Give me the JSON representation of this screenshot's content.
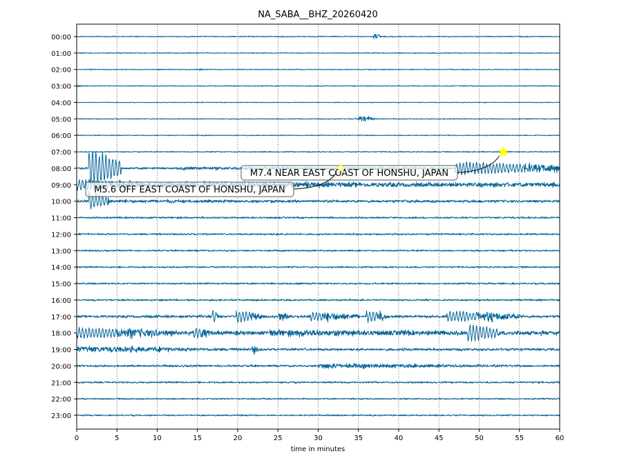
{
  "chart_data": {
    "type": "line",
    "title": "NA_SABA__BHZ_20260420",
    "xlabel": "time in minutes",
    "ylabel": "",
    "xlim": [
      0,
      60
    ],
    "x_ticks": [
      0,
      5,
      10,
      15,
      20,
      25,
      30,
      35,
      40,
      45,
      50,
      55,
      60
    ],
    "grid": "vertical dotted",
    "trace_color": "#00639a",
    "row_labels": [
      "00:00",
      "01:00",
      "02:00",
      "03:00",
      "04:00",
      "05:00",
      "06:00",
      "07:00",
      "08:00",
      "09:00",
      "10:00",
      "11:00",
      "12:00",
      "13:00",
      "14:00",
      "15:00",
      "16:00",
      "17:00",
      "18:00",
      "19:00",
      "20:00",
      "21:00",
      "22:00",
      "23:00"
    ],
    "background_amplitude": [
      0.6,
      0.5,
      0.5,
      0.5,
      0.4,
      0.5,
      0.5,
      0.6,
      1.2,
      2.5,
      1.5,
      1,
      1,
      0.9,
      0.9,
      1,
      1,
      1.5,
      2.5,
      1.5,
      1.2,
      1,
      0.8,
      0.8
    ],
    "bursts": [
      {
        "row": 0,
        "start": 36.8,
        "end": 37.8,
        "amp": 4
      },
      {
        "row": 2,
        "start": 15.2,
        "end": 15.6,
        "amp": 3
      },
      {
        "row": 3,
        "start": 0.1,
        "end": 0.5,
        "amp": 2
      },
      {
        "row": 5,
        "start": 35,
        "end": 37,
        "amp": 4
      },
      {
        "row": 8,
        "start": 13,
        "end": 47,
        "amp": 2
      },
      {
        "row": 8,
        "start": 47,
        "end": 60,
        "amp": 10
      },
      {
        "row": 8,
        "start": 1.5,
        "end": 5.5,
        "amp": 28
      },
      {
        "row": 9,
        "start": 0,
        "end": 10,
        "amp": 8
      },
      {
        "row": 9,
        "start": 10,
        "end": 60,
        "amp": 4
      },
      {
        "row": 10,
        "start": 1.5,
        "end": 4,
        "amp": 14
      },
      {
        "row": 10,
        "start": 4,
        "end": 60,
        "amp": 2
      },
      {
        "row": 17,
        "start": 16.8,
        "end": 17.6,
        "amp": 10
      },
      {
        "row": 17,
        "start": 19.8,
        "end": 23,
        "amp": 9
      },
      {
        "row": 17,
        "start": 25,
        "end": 27,
        "amp": 5
      },
      {
        "row": 17,
        "start": 29,
        "end": 35,
        "amp": 7
      },
      {
        "row": 17,
        "start": 36,
        "end": 38.5,
        "amp": 9
      },
      {
        "row": 17,
        "start": 46,
        "end": 55,
        "amp": 8
      },
      {
        "row": 18,
        "start": 0,
        "end": 12,
        "amp": 8
      },
      {
        "row": 18,
        "start": 14.5,
        "end": 16.5,
        "amp": 9
      },
      {
        "row": 18,
        "start": 24,
        "end": 60,
        "amp": 4
      },
      {
        "row": 18,
        "start": 48.5,
        "end": 52.5,
        "amp": 14
      },
      {
        "row": 19,
        "start": 0,
        "end": 18,
        "amp": 4
      },
      {
        "row": 19,
        "start": 21.8,
        "end": 22.6,
        "amp": 6
      },
      {
        "row": 20,
        "start": 30,
        "end": 55,
        "amp": 3
      }
    ],
    "events": [
      {
        "label": "M7.4 NEAR EAST COAST OF HONSHU, JAPAN",
        "row": 7,
        "minute": 53,
        "star_color": "#ffff00"
      },
      {
        "label": "M5.6 OFF EAST COAST OF HONSHU, JAPAN",
        "row": 8,
        "minute": 32.8,
        "star_color": "#ffff99"
      }
    ]
  }
}
